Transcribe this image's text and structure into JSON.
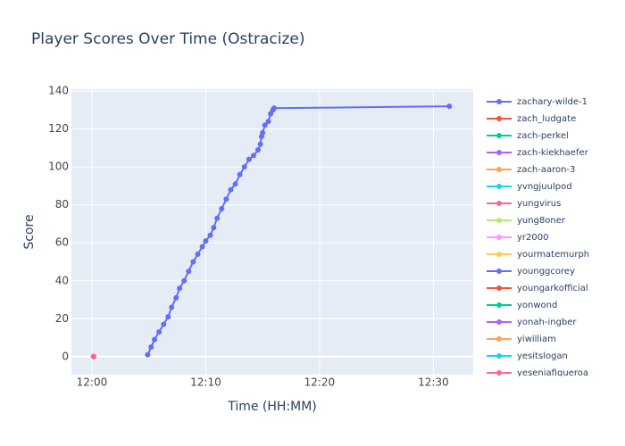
{
  "chart_data": {
    "type": "line",
    "title": "Player Scores Over Time (Ostracize)",
    "x_label": "Time (HH:MM)",
    "y_label": "Score",
    "xlim": [
      -1.8,
      33.5
    ],
    "ylim": [
      -9.5,
      141
    ],
    "xticks": [
      {
        "value": 0,
        "label": "12:00"
      },
      {
        "value": 10,
        "label": "12:10"
      },
      {
        "value": 20,
        "label": "12:20"
      },
      {
        "value": 30,
        "label": "12:30"
      }
    ],
    "yticks": [
      0,
      20,
      40,
      60,
      80,
      100,
      120,
      140
    ],
    "grid": true,
    "legend": "right",
    "series": [
      {
        "name": "zachary-wilde-1",
        "color": "#636efa",
        "x": [
          4.9,
          5.2,
          5.5,
          5.9,
          6.3,
          6.7,
          7.0,
          7.4,
          7.7,
          8.1,
          8.5,
          8.9,
          9.3,
          9.7,
          10.0,
          10.4,
          10.7,
          11.0,
          11.4,
          11.8,
          12.2,
          12.6,
          13.0,
          13.4,
          13.8,
          14.2,
          14.6,
          14.8,
          14.9,
          15.0,
          15.2,
          15.5,
          15.7,
          15.9,
          16.0,
          31.4
        ],
        "values": [
          1,
          5,
          9,
          13,
          17,
          21,
          26,
          31,
          36,
          40,
          45,
          50,
          54,
          58,
          61,
          64,
          68,
          73,
          78,
          83,
          88,
          91,
          96,
          100,
          104,
          106,
          109,
          112,
          116,
          118,
          122,
          124,
          128,
          130,
          131,
          132
        ]
      },
      {
        "name": "zach_ludgate",
        "color": "#EF553B",
        "x": [
          0.15
        ],
        "values": [
          0
        ]
      },
      {
        "name": "zach-perkel",
        "color": "#00cc96",
        "x": [
          0.15
        ],
        "values": [
          0
        ]
      },
      {
        "name": "zach-kiekhaefer",
        "color": "#ab63fa",
        "x": [
          0.15
        ],
        "values": [
          0
        ]
      },
      {
        "name": "zach-aaron-3",
        "color": "#FFA15A",
        "x": [
          0.15
        ],
        "values": [
          0
        ]
      },
      {
        "name": "yvngjuulpod",
        "color": "#19d3f3",
        "x": [
          0.15
        ],
        "values": [
          0
        ]
      },
      {
        "name": "yungvirus",
        "color": "#FF6692",
        "x": [
          0.15
        ],
        "values": [
          0
        ]
      },
      {
        "name": "yung8oner",
        "color": "#B6E880",
        "x": [
          0.15
        ],
        "values": [
          0
        ]
      },
      {
        "name": "yr2000",
        "color": "#FF97FF",
        "x": [
          0.15
        ],
        "values": [
          0
        ]
      },
      {
        "name": "yourmatemurph",
        "color": "#FECB52",
        "x": [
          0.15
        ],
        "values": [
          0
        ]
      },
      {
        "name": "younggcorey",
        "color": "#636efa",
        "x": [
          0.15
        ],
        "values": [
          0
        ]
      },
      {
        "name": "youngarkofficial",
        "color": "#EF553B",
        "x": [
          0.15
        ],
        "values": [
          0
        ]
      },
      {
        "name": "yonwond",
        "color": "#00cc96",
        "x": [
          0.15
        ],
        "values": [
          0
        ]
      },
      {
        "name": "yonah-ingber",
        "color": "#ab63fa",
        "x": [
          0.15
        ],
        "values": [
          0
        ]
      },
      {
        "name": "yiwilliam",
        "color": "#FFA15A",
        "x": [
          0.15
        ],
        "values": [
          0
        ]
      },
      {
        "name": "yesitslogan",
        "color": "#19d3f3",
        "x": [
          0.15
        ],
        "values": [
          0
        ]
      },
      {
        "name": "yeseniafigueroa",
        "color": "#FF6692",
        "x": [
          0.15
        ],
        "values": [
          0
        ]
      }
    ]
  }
}
